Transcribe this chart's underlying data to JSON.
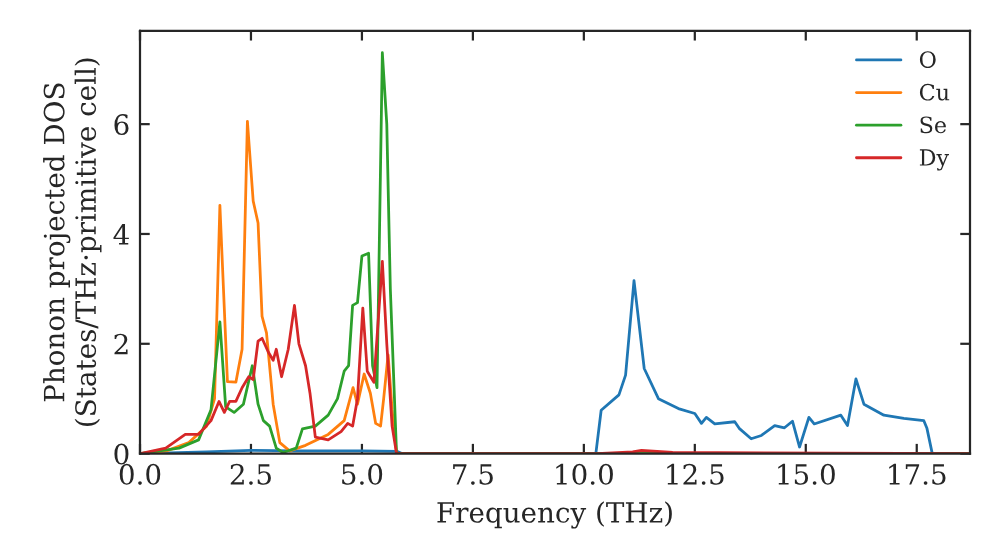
{
  "chart_data": {
    "type": "line",
    "xlabel": "Frequency (THz)",
    "ylabel": "Phonon projected DOS\n(States/THz·primitive cell)",
    "xlim": [
      0,
      18.7
    ],
    "ylim": [
      0,
      7.7
    ],
    "xticks": [
      {
        "value": 0,
        "label": "0.0"
      },
      {
        "value": 2.5,
        "label": "2.5"
      },
      {
        "value": 5,
        "label": "5.0"
      },
      {
        "value": 7.5,
        "label": "7.5"
      },
      {
        "value": 10,
        "label": "10.0"
      },
      {
        "value": 12.5,
        "label": "12.5"
      },
      {
        "value": 15,
        "label": "15.0"
      },
      {
        "value": 17.5,
        "label": "17.5"
      }
    ],
    "yticks": [
      0,
      2,
      4,
      6
    ],
    "grid": false,
    "legend": "top right",
    "line_style": "solid",
    "marker": "none",
    "series": [
      {
        "name": "O",
        "color": "#1f77b4",
        "x": [
          0,
          1.5,
          2.5,
          3.5,
          5.0,
          5.8,
          5.9,
          10.27,
          10.39,
          10.79,
          10.94,
          11.13,
          11.36,
          11.68,
          12.13,
          12.5,
          12.65,
          12.76,
          12.95,
          13.4,
          13.5,
          13.77,
          14.0,
          14.3,
          14.52,
          14.7,
          14.86,
          15.07,
          15.19,
          15.79,
          15.94,
          16.13,
          16.31,
          16.76,
          17.21,
          17.66,
          17.73,
          17.85,
          18.7
        ],
        "values": [
          0,
          0.03,
          0.06,
          0.05,
          0.05,
          0.04,
          0,
          0,
          0.79,
          1.07,
          1.43,
          3.15,
          1.55,
          1.0,
          0.82,
          0.73,
          0.55,
          0.66,
          0.54,
          0.58,
          0.46,
          0.27,
          0.33,
          0.51,
          0.47,
          0.59,
          0.12,
          0.66,
          0.54,
          0.7,
          0.51,
          1.36,
          0.9,
          0.7,
          0.64,
          0.6,
          0.46,
          0,
          0
        ]
      },
      {
        "name": "Cu",
        "color": "#ff7f0e",
        "x": [
          0,
          0.6,
          1.1,
          1.5,
          1.68,
          1.8,
          1.97,
          2.16,
          2.3,
          2.42,
          2.55,
          2.66,
          2.75,
          2.85,
          3.0,
          3.15,
          3.37,
          3.73,
          4.24,
          4.6,
          4.8,
          4.9,
          5.05,
          5.19,
          5.31,
          5.42,
          5.49,
          5.59,
          5.68,
          5.78,
          18.7
        ],
        "values": [
          0,
          0.05,
          0.2,
          0.5,
          1.0,
          4.52,
          1.31,
          1.3,
          1.9,
          6.05,
          4.6,
          4.2,
          2.5,
          2.2,
          0.9,
          0.2,
          0.05,
          0.15,
          0.35,
          0.6,
          1.2,
          0.9,
          1.45,
          1.1,
          0.55,
          0.5,
          1.0,
          1.8,
          0.8,
          0,
          0
        ]
      },
      {
        "name": "Se",
        "color": "#2ca02c",
        "x": [
          0,
          0.88,
          1.32,
          1.6,
          1.8,
          1.93,
          2.12,
          2.33,
          2.53,
          2.66,
          2.78,
          2.92,
          3.07,
          3.22,
          3.52,
          3.66,
          3.95,
          4.24,
          4.45,
          4.6,
          4.7,
          4.79,
          4.9,
          5.0,
          5.15,
          5.24,
          5.34,
          5.46,
          5.56,
          5.64,
          5.78,
          18.7
        ],
        "values": [
          0,
          0.1,
          0.25,
          0.8,
          2.4,
          0.85,
          0.75,
          0.9,
          1.6,
          0.9,
          0.6,
          0.5,
          0.1,
          0.02,
          0.1,
          0.45,
          0.5,
          0.7,
          1.0,
          1.5,
          1.6,
          2.7,
          2.75,
          3.6,
          3.65,
          1.6,
          1.2,
          7.3,
          6.0,
          3.0,
          0,
          0
        ]
      },
      {
        "name": "Dy",
        "color": "#d62728",
        "x": [
          0,
          0.58,
          1.02,
          1.32,
          1.6,
          1.78,
          1.9,
          2.02,
          2.16,
          2.3,
          2.45,
          2.55,
          2.66,
          2.75,
          2.89,
          3.0,
          3.07,
          3.19,
          3.34,
          3.48,
          3.58,
          3.73,
          3.83,
          3.95,
          4.24,
          4.53,
          4.68,
          4.79,
          4.9,
          5.02,
          5.12,
          5.27,
          5.46,
          5.56,
          5.68,
          5.78,
          10.3,
          11.1,
          11.3,
          12.0,
          18.7
        ],
        "values": [
          0,
          0.1,
          0.35,
          0.35,
          0.6,
          0.95,
          0.75,
          0.95,
          0.95,
          1.2,
          1.4,
          1.35,
          2.05,
          2.1,
          1.85,
          1.7,
          1.9,
          1.4,
          1.9,
          2.7,
          2.0,
          1.6,
          1.1,
          0.3,
          0.25,
          0.4,
          0.55,
          0.5,
          1.0,
          2.65,
          1.5,
          1.3,
          3.5,
          2.0,
          0.5,
          0,
          0,
          0.03,
          0.06,
          0.02,
          0
        ]
      }
    ]
  }
}
